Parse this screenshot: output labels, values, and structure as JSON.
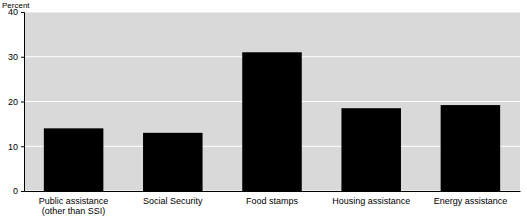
{
  "chart_data": {
    "type": "bar",
    "y_label": "Percent",
    "categories": [
      "Public assistance\n(other than SSI)",
      "Social Security",
      "Food stamps",
      "Housing assistance",
      "Energy assistance"
    ],
    "values": [
      14,
      13,
      31,
      18.5,
      19.2
    ],
    "color": "#000000",
    "ylim": [
      0,
      40
    ],
    "yticks": [
      0,
      10,
      20,
      30,
      40
    ],
    "grid": true
  }
}
